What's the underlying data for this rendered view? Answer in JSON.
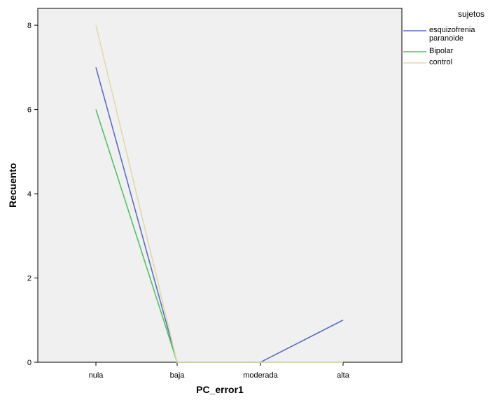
{
  "chart_data": {
    "type": "line",
    "xlabel": "PC_error1",
    "ylabel": "Recuento",
    "categories": [
      "nula",
      "baja",
      "moderada",
      "alta"
    ],
    "ylim": [
      0,
      8.4
    ],
    "yticks": [
      0,
      2,
      4,
      6,
      8
    ],
    "grid": false,
    "legend": {
      "title": "sujetos",
      "placement": "top-right"
    },
    "series": [
      {
        "name": "esquizofrenia\nparanoide",
        "color": "#5a6ec7",
        "values": [
          7,
          0,
          0,
          1
        ]
      },
      {
        "name": "Bipolar",
        "color": "#4fc463",
        "values": [
          6,
          0,
          0,
          0
        ]
      },
      {
        "name": "control",
        "color": "#e2d9a8",
        "values": [
          8,
          0,
          0,
          0
        ]
      }
    ]
  }
}
